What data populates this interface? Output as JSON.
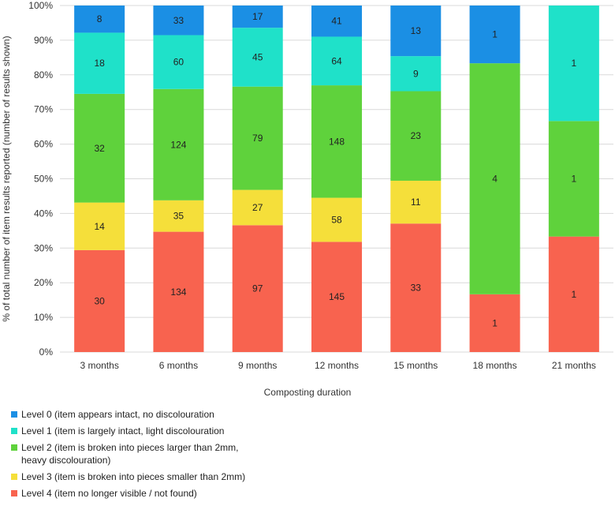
{
  "chart_data": {
    "type": "bar",
    "stacked": "percent",
    "title": "",
    "xlabel": "Composting duration",
    "ylabel": "% of total number of item results reported (number of results shown)",
    "ylim": [
      0,
      100
    ],
    "yticks": [
      "0%",
      "10%",
      "20%",
      "30%",
      "40%",
      "50%",
      "60%",
      "70%",
      "80%",
      "90%",
      "100%"
    ],
    "grid": true,
    "legend_position": "bottom-left",
    "categories": [
      "3 months",
      "6 months",
      "9 months",
      "12 months",
      "15 months",
      "18 months",
      "21 months"
    ],
    "series": [
      {
        "name": "Level 4 (item no longer visible / not found)",
        "color": "#f8634f",
        "values": [
          30,
          134,
          97,
          145,
          33,
          1,
          1
        ]
      },
      {
        "name": "Level 3 (item is broken into pieces smaller than 2mm)",
        "color": "#f5df3a",
        "values": [
          14,
          35,
          27,
          58,
          11,
          0,
          0
        ]
      },
      {
        "name": "Level 2 (item is broken into pieces larger than 2mm, heavy discolouration)",
        "color": "#5fd23c",
        "values": [
          32,
          124,
          79,
          148,
          23,
          4,
          1
        ]
      },
      {
        "name": "Level 1 (item is largely intact, light discolouration",
        "color": "#1fe1c9",
        "values": [
          18,
          60,
          45,
          64,
          9,
          0,
          1
        ]
      },
      {
        "name": "Level 0 (item appears intact, no discolouration",
        "color": "#1b8fe4",
        "values": [
          8,
          33,
          17,
          41,
          13,
          1,
          0
        ]
      }
    ]
  }
}
